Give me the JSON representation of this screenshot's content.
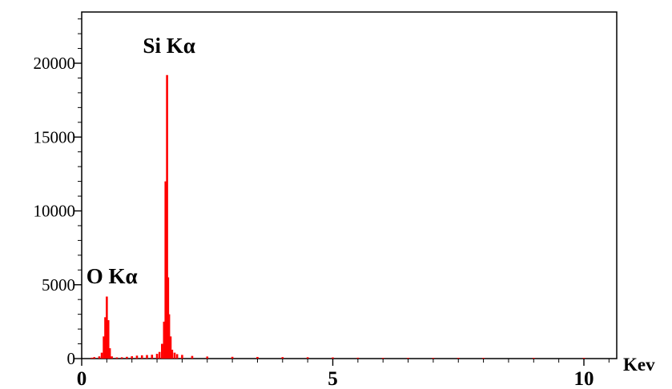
{
  "chart_data": {
    "type": "bar",
    "xlabel": "Kev",
    "ylabel": "",
    "xlim": [
      0,
      10.6
    ],
    "ylim": [
      0,
      23500
    ],
    "x_ticks": [
      {
        "value": 0,
        "label": "0"
      },
      {
        "value": 5,
        "label": "5"
      },
      {
        "value": 10,
        "label": "10"
      }
    ],
    "y_ticks": [
      {
        "value": 0,
        "label": "0"
      },
      {
        "value": 5000,
        "label": "5000"
      },
      {
        "value": 10000,
        "label": "10000"
      },
      {
        "value": 15000,
        "label": "15000"
      },
      {
        "value": 20000,
        "label": "20000"
      }
    ],
    "grid": false,
    "series": [
      {
        "color": "#ff0000",
        "x": [
          0.2,
          0.25,
          0.35,
          0.4,
          0.44,
          0.47,
          0.5,
          0.53,
          0.56,
          0.6,
          0.7,
          0.8,
          0.9,
          1.0,
          1.1,
          1.2,
          1.3,
          1.4,
          1.5,
          1.55,
          1.6,
          1.64,
          1.67,
          1.7,
          1.72,
          1.74,
          1.77,
          1.8,
          1.85,
          1.9,
          2.0,
          2.2,
          2.5,
          3.0,
          3.5,
          4.0,
          4.5,
          5.0,
          5.5,
          6.0,
          6.5,
          7.0,
          7.5,
          8.0,
          9.0,
          10.0
        ],
        "y": [
          60,
          100,
          150,
          400,
          1500,
          2800,
          4200,
          2600,
          700,
          150,
          80,
          90,
          120,
          160,
          200,
          220,
          240,
          260,
          320,
          450,
          1000,
          2500,
          12000,
          19200,
          5500,
          3000,
          1500,
          600,
          400,
          300,
          250,
          180,
          140,
          120,
          110,
          100,
          90,
          80,
          60,
          50,
          40,
          30,
          20,
          15,
          10,
          10
        ]
      }
    ],
    "annotations": [
      {
        "text": "Si Kα",
        "x": 1.74,
        "y": 20700
      },
      {
        "text": "O Kα",
        "x": 0.6,
        "y": 5100
      }
    ]
  }
}
